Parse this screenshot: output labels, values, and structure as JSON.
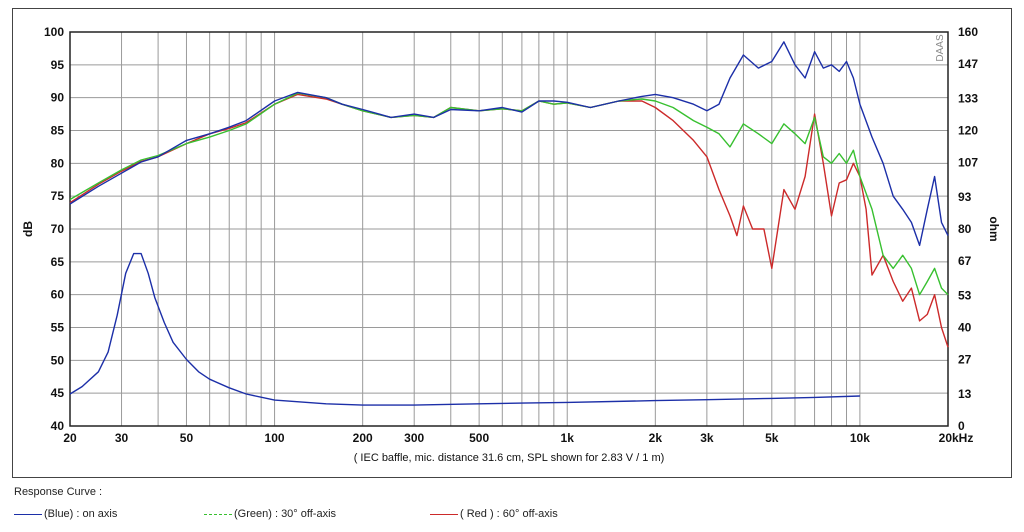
{
  "chart_data": {
    "type": "line",
    "xscale": "log",
    "x_ticks": [
      {
        "value": 20,
        "label": "20"
      },
      {
        "value": 30,
        "label": "30"
      },
      {
        "value": 50,
        "label": "50"
      },
      {
        "value": 100,
        "label": "100"
      },
      {
        "value": 200,
        "label": "200"
      },
      {
        "value": 300,
        "label": "300"
      },
      {
        "value": 500,
        "label": "500"
      },
      {
        "value": 1000,
        "label": "1k"
      },
      {
        "value": 2000,
        "label": "2k"
      },
      {
        "value": 3000,
        "label": "3k"
      },
      {
        "value": 5000,
        "label": "5k"
      },
      {
        "value": 10000,
        "label": "10k"
      },
      {
        "value": 20000,
        "label": "20kHz"
      }
    ],
    "xlim": [
      20,
      20000
    ],
    "ylim_left": [
      40,
      100
    ],
    "ylabel_left": "dB",
    "y_ticks_left": [
      100,
      95,
      90,
      85,
      80,
      75,
      70,
      65,
      60,
      55,
      50,
      45,
      40
    ],
    "ylim_right": [
      0,
      160
    ],
    "ylabel_right": "ohm",
    "y_ticks_right": [
      160,
      147,
      133,
      120,
      107,
      93,
      80,
      67,
      53,
      40,
      27,
      13,
      0
    ],
    "xlabel": "( IEC baffle, mic. distance 31.6 cm, SPL shown for 2.83 V / 1 m)",
    "watermark": "DAAS",
    "grid": true,
    "series": [
      {
        "name": "(Blue) : on axis",
        "color": "#1c2fa8",
        "axis": "left",
        "points": [
          [
            20,
            73.8
          ],
          [
            25,
            76.5
          ],
          [
            30,
            78.5
          ],
          [
            35,
            80.2
          ],
          [
            40,
            81
          ],
          [
            50,
            83.5
          ],
          [
            60,
            84.5
          ],
          [
            70,
            85.5
          ],
          [
            80,
            86.5
          ],
          [
            100,
            89.5
          ],
          [
            120,
            90.8
          ],
          [
            150,
            90
          ],
          [
            170,
            89
          ],
          [
            200,
            88.2
          ],
          [
            250,
            87
          ],
          [
            300,
            87.5
          ],
          [
            350,
            87
          ],
          [
            400,
            88.2
          ],
          [
            500,
            88
          ],
          [
            600,
            88.5
          ],
          [
            700,
            87.8
          ],
          [
            800,
            89.5
          ],
          [
            900,
            89.5
          ],
          [
            1000,
            89.3
          ],
          [
            1200,
            88.5
          ],
          [
            1500,
            89.5
          ],
          [
            1800,
            90.2
          ],
          [
            2000,
            90.5
          ],
          [
            2300,
            90
          ],
          [
            2700,
            89
          ],
          [
            3000,
            88
          ],
          [
            3300,
            89
          ],
          [
            3600,
            93
          ],
          [
            4000,
            96.5
          ],
          [
            4500,
            94.5
          ],
          [
            5000,
            95.5
          ],
          [
            5500,
            98.5
          ],
          [
            6000,
            95
          ],
          [
            6500,
            93
          ],
          [
            7000,
            97
          ],
          [
            7500,
            94.5
          ],
          [
            8000,
            95
          ],
          [
            8500,
            94
          ],
          [
            9000,
            95.5
          ],
          [
            9500,
            93
          ],
          [
            10000,
            89
          ],
          [
            11000,
            84
          ],
          [
            12000,
            80
          ],
          [
            13000,
            75
          ],
          [
            14000,
            73
          ],
          [
            15000,
            71
          ],
          [
            16000,
            67.5
          ],
          [
            17000,
            73
          ],
          [
            18000,
            78
          ],
          [
            19000,
            71
          ],
          [
            20000,
            69
          ]
        ]
      },
      {
        "name": "(Green) : 30° off-axis",
        "color": "#38c030",
        "axis": "left",
        "points": [
          [
            20,
            74.5
          ],
          [
            25,
            77
          ],
          [
            30,
            79
          ],
          [
            35,
            80.5
          ],
          [
            40,
            81.2
          ],
          [
            50,
            83
          ],
          [
            60,
            84
          ],
          [
            70,
            85
          ],
          [
            80,
            86
          ],
          [
            100,
            89
          ],
          [
            120,
            90.7
          ],
          [
            150,
            90
          ],
          [
            170,
            89
          ],
          [
            200,
            88
          ],
          [
            250,
            87
          ],
          [
            300,
            87.3
          ],
          [
            350,
            87
          ],
          [
            400,
            88.5
          ],
          [
            500,
            88
          ],
          [
            600,
            88.3
          ],
          [
            700,
            88
          ],
          [
            800,
            89.5
          ],
          [
            900,
            89
          ],
          [
            1000,
            89.2
          ],
          [
            1200,
            88.5
          ],
          [
            1500,
            89.5
          ],
          [
            1800,
            89.8
          ],
          [
            2000,
            89.5
          ],
          [
            2300,
            88.5
          ],
          [
            2700,
            86.5
          ],
          [
            3000,
            85.5
          ],
          [
            3300,
            84.5
          ],
          [
            3600,
            82.5
          ],
          [
            4000,
            86
          ],
          [
            4500,
            84.5
          ],
          [
            5000,
            83
          ],
          [
            5500,
            86
          ],
          [
            6000,
            84.5
          ],
          [
            6500,
            83
          ],
          [
            7000,
            87
          ],
          [
            7500,
            81
          ],
          [
            8000,
            80
          ],
          [
            8500,
            81.5
          ],
          [
            9000,
            80
          ],
          [
            9500,
            82
          ],
          [
            10000,
            78
          ],
          [
            11000,
            73
          ],
          [
            12000,
            66
          ],
          [
            13000,
            64
          ],
          [
            14000,
            66
          ],
          [
            15000,
            64
          ],
          [
            16000,
            60
          ],
          [
            17000,
            62
          ],
          [
            18000,
            64
          ],
          [
            19000,
            61
          ],
          [
            20000,
            60
          ]
        ]
      },
      {
        "name": "( Red ) : 60° off-axis",
        "color": "#cc2a2a",
        "axis": "left",
        "points": [
          [
            20,
            74
          ],
          [
            25,
            76.8
          ],
          [
            30,
            78.8
          ],
          [
            35,
            80.3
          ],
          [
            40,
            81
          ],
          [
            50,
            83
          ],
          [
            60,
            84.5
          ],
          [
            70,
            85.3
          ],
          [
            80,
            86.2
          ],
          [
            100,
            89
          ],
          [
            120,
            90.5
          ],
          [
            150,
            89.8
          ],
          [
            170,
            89
          ],
          [
            200,
            88
          ],
          [
            250,
            87
          ],
          [
            300,
            87.3
          ],
          [
            350,
            87
          ],
          [
            400,
            88.5
          ],
          [
            500,
            88
          ],
          [
            600,
            88.3
          ],
          [
            700,
            88
          ],
          [
            800,
            89.5
          ],
          [
            900,
            89
          ],
          [
            1000,
            89.2
          ],
          [
            1200,
            88.5
          ],
          [
            1500,
            89.5
          ],
          [
            1800,
            89.5
          ],
          [
            2000,
            88.5
          ],
          [
            2300,
            86.5
          ],
          [
            2700,
            83.5
          ],
          [
            3000,
            81
          ],
          [
            3300,
            76
          ],
          [
            3600,
            72
          ],
          [
            3800,
            69
          ],
          [
            4000,
            73.5
          ],
          [
            4300,
            70
          ],
          [
            4700,
            70
          ],
          [
            5000,
            64
          ],
          [
            5500,
            76
          ],
          [
            6000,
            73
          ],
          [
            6500,
            78
          ],
          [
            7000,
            87.5
          ],
          [
            7500,
            80
          ],
          [
            8000,
            72
          ],
          [
            8500,
            77
          ],
          [
            9000,
            77.5
          ],
          [
            9500,
            80
          ],
          [
            10000,
            78
          ],
          [
            10500,
            73
          ],
          [
            11000,
            63
          ],
          [
            12000,
            66
          ],
          [
            13000,
            62
          ],
          [
            14000,
            59
          ],
          [
            15000,
            61
          ],
          [
            16000,
            56
          ],
          [
            17000,
            57
          ],
          [
            18000,
            60
          ],
          [
            19000,
            55
          ],
          [
            20000,
            52
          ]
        ]
      },
      {
        "name": "impedance",
        "color": "#1c2fa8",
        "axis": "right",
        "points": [
          [
            20,
            13
          ],
          [
            22,
            16
          ],
          [
            25,
            22
          ],
          [
            27,
            30
          ],
          [
            29,
            45
          ],
          [
            31,
            62
          ],
          [
            33,
            70
          ],
          [
            35,
            70
          ],
          [
            37,
            62
          ],
          [
            39,
            52
          ],
          [
            42,
            42
          ],
          [
            45,
            34
          ],
          [
            50,
            27
          ],
          [
            55,
            22
          ],
          [
            60,
            19
          ],
          [
            70,
            15.5
          ],
          [
            80,
            13
          ],
          [
            100,
            10.5
          ],
          [
            150,
            9
          ],
          [
            200,
            8.5
          ],
          [
            300,
            8.5
          ],
          [
            500,
            9
          ],
          [
            700,
            9.3
          ],
          [
            1000,
            9.6
          ],
          [
            2000,
            10.3
          ],
          [
            3000,
            10.7
          ],
          [
            5000,
            11.2
          ],
          [
            7000,
            11.6
          ],
          [
            10000,
            12.2
          ]
        ]
      }
    ]
  },
  "labels": {
    "x_caption": "( IEC baffle, mic. distance 31.6 cm, SPL shown for 2.83 V / 1 m)",
    "ylabel_left": "dB",
    "ylabel_right": "ohm",
    "watermark": "DAAS"
  },
  "legend": {
    "title": "Response Curve :",
    "items": [
      {
        "label": "(Blue)  :  on axis",
        "color": "#1c2fa8",
        "dashed": false
      },
      {
        "label": "(Green) : 30° off-axis",
        "color": "#38c030",
        "dashed": true
      },
      {
        "label": "( Red ) : 60° off-axis",
        "color": "#cc2a2a",
        "dashed": false
      }
    ]
  }
}
